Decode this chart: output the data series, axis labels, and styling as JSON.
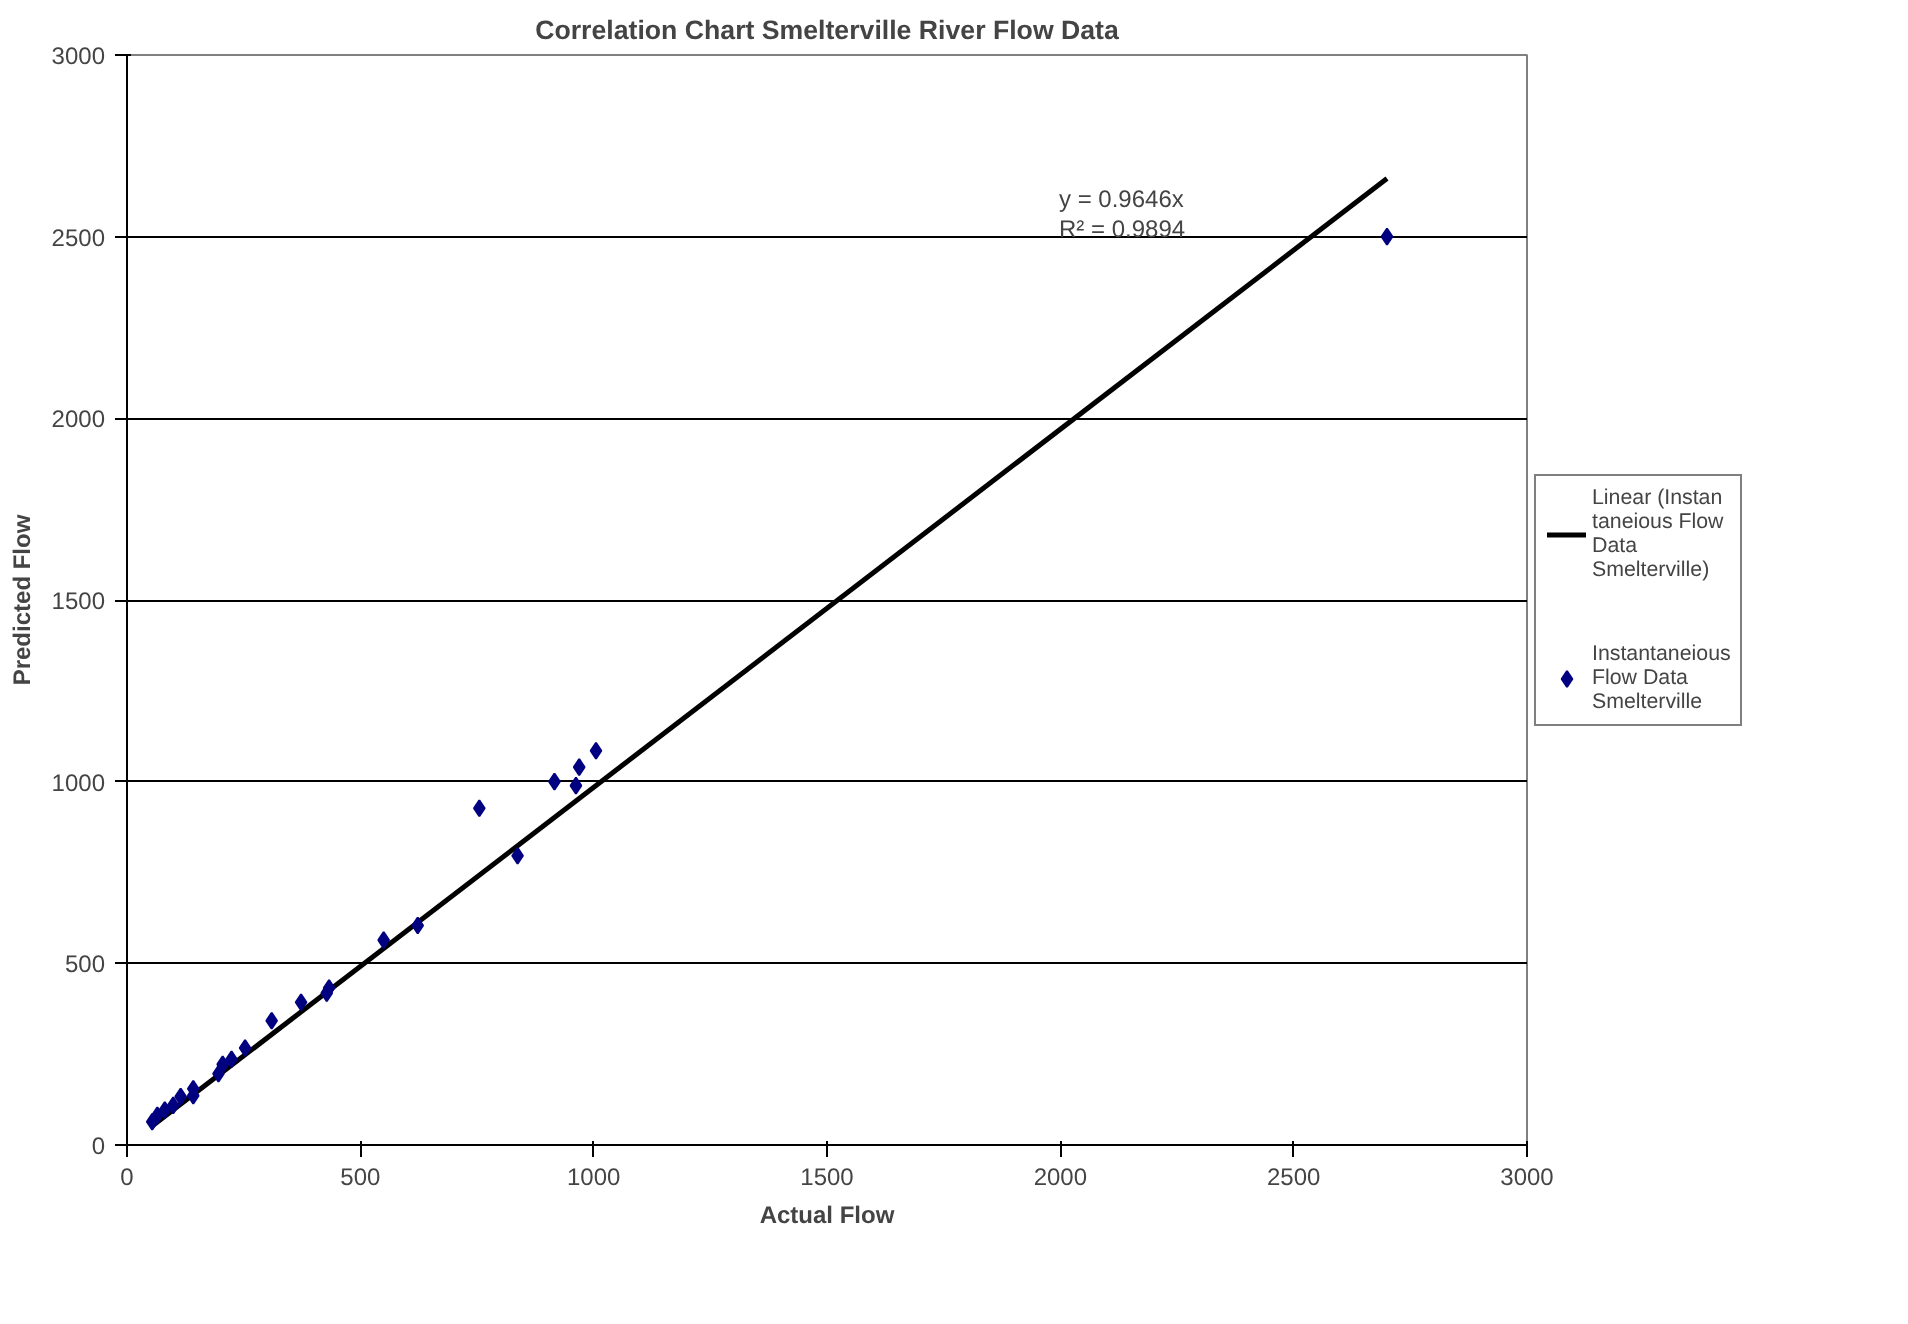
{
  "chart_data": {
    "type": "scatter",
    "title": "Correlation Chart Smelterville River Flow Data",
    "xlabel": "Actual Flow",
    "ylabel": "Predicted Flow",
    "xlim": [
      0,
      3000
    ],
    "ylim": [
      0,
      3000
    ],
    "xticks": [
      0,
      500,
      1000,
      1500,
      2000,
      2500,
      3000
    ],
    "yticks": [
      0,
      500,
      1000,
      1500,
      2000,
      2500,
      3000
    ],
    "grid": "y",
    "legend": "right",
    "marker": "diamond",
    "series": [
      {
        "name": "Instantaneious Flow Data Smelterville",
        "color": "#000080",
        "x": [
          2700,
          1005,
          969,
          916,
          962,
          755,
          837,
          623,
          550,
          428,
          433,
          373,
          310,
          253,
          224,
          205,
          196,
          142,
          142,
          115,
          99,
          81,
          65,
          54
        ],
        "values": [
          2500,
          1085,
          1040,
          1000,
          989,
          927,
          796,
          604,
          564,
          418,
          432,
          393,
          342,
          267,
          236,
          222,
          196,
          155,
          136,
          133,
          109,
          96,
          82,
          64
        ]
      },
      {
        "name": "Linear (Instantaneious Flow Data Smelterville)",
        "color": "#000000",
        "type": "line",
        "marker": "none",
        "x": [
          54,
          2700
        ],
        "values": [
          52,
          2660
        ]
      }
    ],
    "annotations": [
      "y = 0.9646x",
      "R² = 0.9894"
    ]
  }
}
